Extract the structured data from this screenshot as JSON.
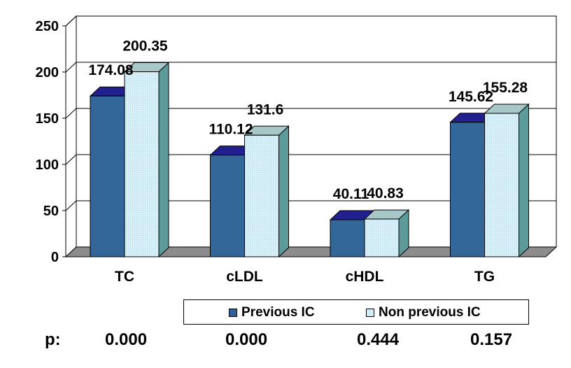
{
  "chart_data": {
    "type": "bar",
    "categories": [
      "TC",
      "cLDL",
      "cHDL",
      "TG"
    ],
    "series": [
      {
        "name": "Previous IC",
        "values": [
          174.08,
          110.12,
          40.11,
          145.62
        ],
        "labels": [
          "174.08",
          "110.12",
          "40.11",
          "145.62"
        ],
        "color": "#2f6296"
      },
      {
        "name": "Non previous IC",
        "values": [
          200.35,
          131.6,
          40.83,
          155.28
        ],
        "labels": [
          "200.35",
          "131.6",
          "40.83",
          "155.28"
        ],
        "color": "#d2ecf5"
      }
    ],
    "yticks": [
      "0",
      "50",
      "100",
      "150",
      "200",
      "250"
    ],
    "ylim": [
      0,
      250
    ],
    "grid": true,
    "style": "3d",
    "legend_position": "bottom"
  },
  "pvalues": {
    "label": "p:",
    "values": [
      "0.000",
      "0.000",
      "0.444",
      "0.157"
    ]
  }
}
